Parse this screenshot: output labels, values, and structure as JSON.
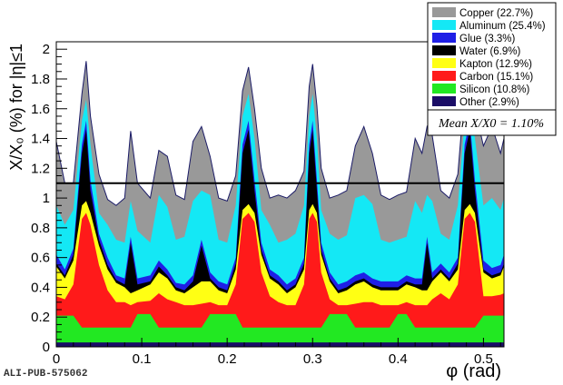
{
  "chart_data": {
    "type": "area",
    "stacked": true,
    "title": "",
    "xlabel": "φ (rad)",
    "ylabel": "X/X₀ (%) for |η|≤1",
    "xlim": [
      0,
      0.524
    ],
    "ylim": [
      0,
      2.05
    ],
    "xticks": [
      0,
      0.1,
      0.2,
      0.3,
      0.4,
      0.5
    ],
    "xtick_labels": [
      "0",
      "0.1",
      "0.2",
      "0.3",
      "0.4",
      "0.5"
    ],
    "yticks": [
      0,
      0.2,
      0.4,
      0.6,
      0.8,
      1,
      1.2,
      1.4,
      1.6,
      1.8,
      2
    ],
    "ytick_labels": [
      "0",
      "0.2",
      "0.4",
      "0.6",
      "0.8",
      "1",
      "1.2",
      "1.4",
      "1.6",
      "1.8",
      "2"
    ],
    "legend_position": "top-right",
    "mean_line": {
      "y": 1.1,
      "label": "Mean X/X0 = 1.10%"
    },
    "watermark": "ALI-PUB-575062",
    "series": [
      {
        "name": "Other (2.9%)",
        "color": "#1a0d66"
      },
      {
        "name": "Silicon (10.8%)",
        "color": "#22e822"
      },
      {
        "name": "Carbon (15.1%)",
        "color": "#ff1a1a"
      },
      {
        "name": "Kapton (12.9%)",
        "color": "#ffff14"
      },
      {
        "name": "Water (6.9%)",
        "color": "#000000"
      },
      {
        "name": "Glue (3.3%)",
        "color": "#1f1fe6"
      },
      {
        "name": "Aluminum (25.4%)",
        "color": "#14e8f5"
      },
      {
        "name": "Copper (22.7%)",
        "color": "#999999"
      }
    ],
    "legend_order": [
      7,
      6,
      5,
      4,
      3,
      2,
      1,
      0
    ],
    "x": [
      0,
      0.01,
      0.02,
      0.03,
      0.035,
      0.04,
      0.05,
      0.06,
      0.07,
      0.08,
      0.087,
      0.095,
      0.11,
      0.12,
      0.13,
      0.14,
      0.15,
      0.16,
      0.17,
      0.18,
      0.19,
      0.2,
      0.21,
      0.218,
      0.225,
      0.232,
      0.24,
      0.25,
      0.26,
      0.27,
      0.28,
      0.29,
      0.296,
      0.3,
      0.305,
      0.31,
      0.32,
      0.33,
      0.34,
      0.35,
      0.36,
      0.37,
      0.38,
      0.39,
      0.4,
      0.41,
      0.42,
      0.428,
      0.434,
      0.44,
      0.45,
      0.46,
      0.47,
      0.478,
      0.484,
      0.49,
      0.5,
      0.51,
      0.52,
      0.524
    ],
    "cumulative": [
      [
        0.03,
        0.03,
        0.03,
        0.03,
        0.03,
        0.03,
        0.03,
        0.03,
        0.03,
        0.03,
        0.03,
        0.03,
        0.03,
        0.03,
        0.03,
        0.03,
        0.03,
        0.03,
        0.03,
        0.03,
        0.03,
        0.03,
        0.03,
        0.03,
        0.03,
        0.03,
        0.03,
        0.03,
        0.03,
        0.03,
        0.03,
        0.03,
        0.03,
        0.03,
        0.03,
        0.03,
        0.03,
        0.03,
        0.03,
        0.03,
        0.03,
        0.03,
        0.03,
        0.03,
        0.03,
        0.03,
        0.03,
        0.03,
        0.03,
        0.03,
        0.03,
        0.03,
        0.03,
        0.03,
        0.03,
        0.03,
        0.03,
        0.03,
        0.03,
        0.03
      ],
      [
        0.21,
        0.21,
        0.21,
        0.13,
        0.13,
        0.13,
        0.13,
        0.13,
        0.13,
        0.13,
        0.13,
        0.22,
        0.22,
        0.13,
        0.13,
        0.13,
        0.13,
        0.13,
        0.13,
        0.22,
        0.22,
        0.22,
        0.22,
        0.13,
        0.13,
        0.13,
        0.13,
        0.13,
        0.13,
        0.13,
        0.13,
        0.13,
        0.13,
        0.13,
        0.13,
        0.13,
        0.22,
        0.22,
        0.22,
        0.13,
        0.13,
        0.13,
        0.13,
        0.13,
        0.22,
        0.22,
        0.13,
        0.13,
        0.13,
        0.13,
        0.13,
        0.13,
        0.13,
        0.13,
        0.13,
        0.13,
        0.21,
        0.21,
        0.21,
        0.21
      ],
      [
        0.34,
        0.32,
        0.42,
        0.86,
        0.9,
        0.82,
        0.55,
        0.38,
        0.3,
        0.3,
        0.28,
        0.3,
        0.31,
        0.36,
        0.32,
        0.3,
        0.28,
        0.28,
        0.29,
        0.3,
        0.28,
        0.28,
        0.42,
        0.86,
        0.9,
        0.84,
        0.5,
        0.34,
        0.3,
        0.28,
        0.28,
        0.42,
        0.86,
        0.9,
        0.84,
        0.5,
        0.32,
        0.28,
        0.28,
        0.29,
        0.3,
        0.3,
        0.28,
        0.28,
        0.28,
        0.3,
        0.28,
        0.28,
        0.28,
        0.32,
        0.36,
        0.32,
        0.42,
        0.86,
        0.9,
        0.84,
        0.34,
        0.34,
        0.35,
        0.36
      ],
      [
        0.54,
        0.46,
        0.58,
        0.95,
        0.98,
        0.9,
        0.68,
        0.52,
        0.43,
        0.4,
        0.36,
        0.38,
        0.42,
        0.5,
        0.46,
        0.38,
        0.36,
        0.4,
        0.44,
        0.44,
        0.38,
        0.36,
        0.52,
        0.92,
        0.96,
        0.9,
        0.62,
        0.46,
        0.42,
        0.36,
        0.4,
        0.52,
        0.92,
        0.96,
        0.9,
        0.62,
        0.44,
        0.36,
        0.38,
        0.42,
        0.44,
        0.4,
        0.38,
        0.38,
        0.38,
        0.42,
        0.4,
        0.38,
        0.38,
        0.44,
        0.5,
        0.44,
        0.52,
        0.92,
        0.96,
        0.9,
        0.5,
        0.46,
        0.48,
        0.54
      ],
      [
        0.56,
        0.48,
        0.62,
        1.3,
        1.46,
        1.05,
        0.72,
        0.55,
        0.45,
        0.42,
        0.7,
        0.42,
        0.44,
        0.54,
        0.48,
        0.4,
        0.38,
        0.44,
        0.68,
        0.46,
        0.4,
        0.38,
        0.56,
        1.3,
        1.46,
        1.05,
        0.65,
        0.48,
        0.44,
        0.38,
        0.42,
        0.56,
        1.3,
        1.46,
        1.05,
        0.65,
        0.46,
        0.38,
        0.4,
        0.44,
        0.46,
        0.42,
        0.4,
        0.4,
        0.4,
        0.44,
        0.42,
        0.42,
        0.7,
        0.46,
        0.52,
        0.46,
        0.56,
        1.3,
        1.46,
        1.05,
        0.52,
        0.48,
        0.5,
        0.56
      ],
      [
        0.62,
        0.52,
        0.66,
        1.36,
        1.52,
        1.12,
        0.76,
        0.6,
        0.48,
        0.46,
        0.74,
        0.46,
        0.48,
        0.58,
        0.52,
        0.43,
        0.42,
        0.48,
        0.72,
        0.5,
        0.44,
        0.42,
        0.6,
        1.36,
        1.52,
        1.12,
        0.7,
        0.52,
        0.48,
        0.42,
        0.46,
        0.6,
        1.36,
        1.52,
        1.12,
        0.7,
        0.5,
        0.42,
        0.44,
        0.48,
        0.5,
        0.46,
        0.44,
        0.44,
        0.44,
        0.48,
        0.46,
        0.46,
        0.74,
        0.5,
        0.56,
        0.5,
        0.6,
        1.36,
        1.52,
        1.12,
        0.58,
        0.53,
        0.55,
        0.62
      ],
      [
        0.95,
        0.82,
        0.92,
        1.52,
        1.66,
        1.36,
        0.9,
        0.82,
        0.72,
        0.7,
        0.98,
        0.78,
        0.7,
        1.02,
        0.94,
        0.72,
        0.74,
        0.98,
        1.05,
        1.02,
        0.72,
        0.7,
        0.95,
        1.55,
        1.7,
        1.4,
        0.92,
        0.82,
        0.7,
        0.72,
        0.76,
        0.95,
        1.55,
        1.7,
        1.4,
        0.92,
        0.76,
        0.72,
        0.75,
        1.0,
        1.02,
        0.96,
        0.72,
        0.7,
        0.72,
        0.74,
        0.98,
        0.9,
        1.02,
        0.98,
        0.76,
        0.72,
        0.95,
        1.52,
        1.68,
        1.4,
        0.95,
        1.0,
        0.92,
        1.0
      ],
      [
        1.38,
        1.1,
        1.1,
        1.7,
        1.92,
        1.55,
        1.16,
        0.99,
        0.95,
        1.0,
        1.45,
        1.1,
        1.0,
        1.32,
        1.28,
        1.02,
        0.99,
        1.38,
        1.48,
        1.28,
        1.0,
        0.98,
        1.15,
        1.72,
        1.88,
        1.6,
        1.2,
        1.0,
        1.02,
        1.0,
        1.05,
        1.18,
        1.75,
        1.9,
        1.62,
        1.2,
        1.0,
        1.02,
        1.05,
        1.35,
        1.48,
        1.3,
        1.02,
        0.99,
        1.02,
        1.04,
        1.4,
        1.3,
        1.48,
        1.42,
        1.05,
        1.0,
        1.16,
        1.72,
        1.85,
        1.6,
        1.35,
        1.48,
        1.3,
        1.4
      ]
    ]
  }
}
